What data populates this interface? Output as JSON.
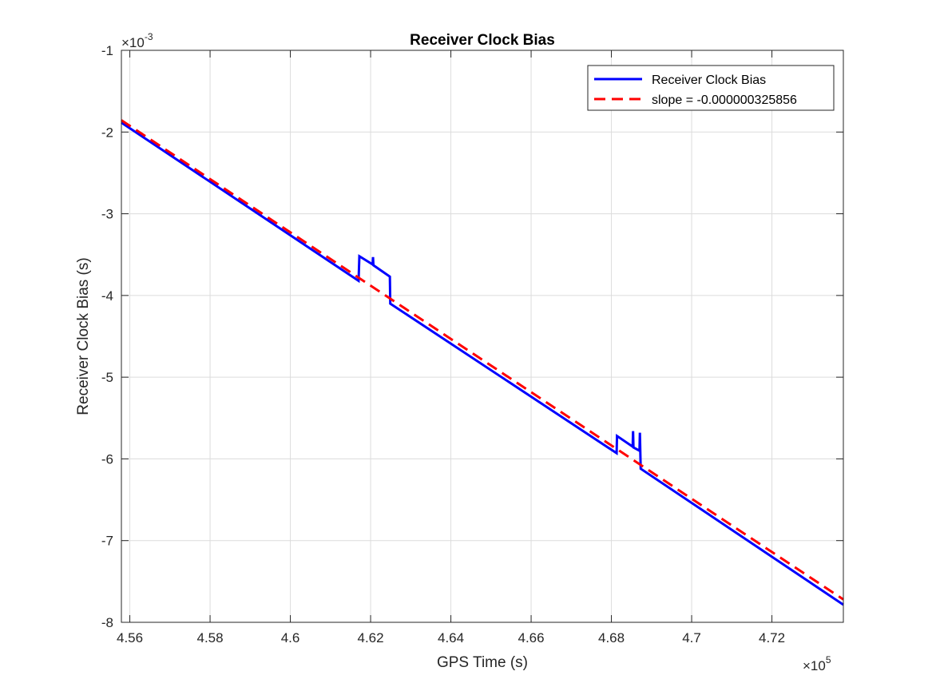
{
  "chart_data": {
    "type": "line",
    "title": "Receiver Clock Bias",
    "xlabel": "GPS Time (s)",
    "ylabel": "Receiver Clock Bias (s)",
    "x_multiplier_base": "×10",
    "x_multiplier_exponent": "5",
    "y_multiplier_base": "×10",
    "y_multiplier_exponent": "-3",
    "xlim": [
      455790,
      473780
    ],
    "ylim": [
      -8,
      -1
    ],
    "x_tick_values": [
      4.56,
      4.58,
      4.6,
      4.62,
      4.64,
      4.66,
      4.68,
      4.7,
      4.72
    ],
    "x_tick_labels": [
      "4.56",
      "4.58",
      "4.6",
      "4.62",
      "4.64",
      "4.66",
      "4.68",
      "4.7",
      "4.72"
    ],
    "y_tick_values": [
      -1,
      -2,
      -3,
      -4,
      -5,
      -6,
      -7,
      -8
    ],
    "y_tick_labels": [
      "-1",
      "-2",
      "-3",
      "-4",
      "-5",
      "-6",
      "-7",
      "-8"
    ],
    "grid": true,
    "legend_position": "top-right",
    "colors": {
      "series_1": "#0000ff",
      "series_2": "#ff0000"
    },
    "series": [
      {
        "name": "Receiver Clock Bias",
        "style": "solid",
        "points": [
          [
            455790,
            -1.885
          ],
          [
            461700,
            -3.82
          ],
          [
            461720,
            -3.52
          ],
          [
            462050,
            -3.62
          ],
          [
            462060,
            -3.53
          ],
          [
            462070,
            -3.63
          ],
          [
            462480,
            -3.77
          ],
          [
            462490,
            -4.1
          ],
          [
            468130,
            -5.93
          ],
          [
            468140,
            -5.72
          ],
          [
            468530,
            -5.85
          ],
          [
            468540,
            -5.66
          ],
          [
            468550,
            -5.86
          ],
          [
            468700,
            -5.9
          ],
          [
            468710,
            -5.68
          ],
          [
            468730,
            -6.12
          ],
          [
            473780,
            -7.785
          ]
        ]
      },
      {
        "name": "slope = -0.000000325856",
        "style": "dashed",
        "points": [
          [
            455790,
            -1.855
          ],
          [
            473780,
            -7.72
          ]
        ]
      }
    ]
  }
}
